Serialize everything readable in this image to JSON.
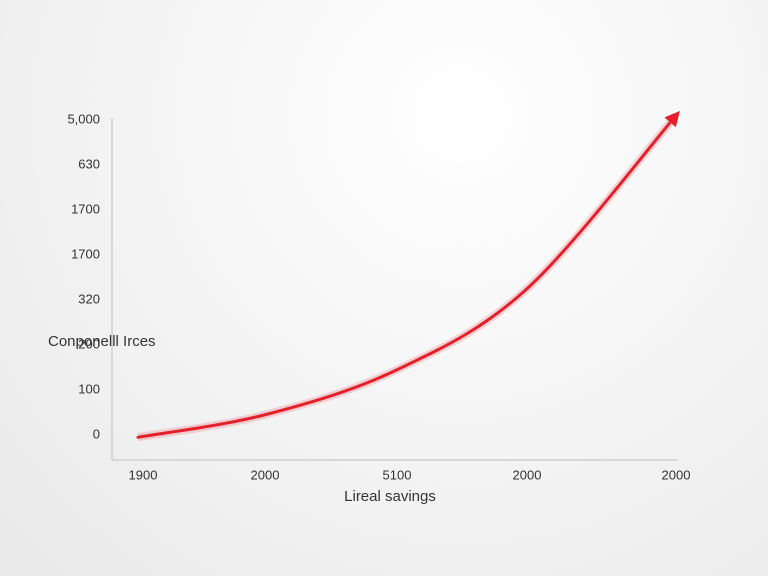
{
  "chart_data": {
    "type": "line",
    "y_label": "Conponelll Irces",
    "x_label": "Lireal savings",
    "categories": [
      "1900",
      "2000",
      "5100",
      "2000",
      "2000"
    ],
    "ycategories": [
      "0",
      "100",
      "200",
      "320",
      "1700",
      "1700",
      "630",
      "5,000"
    ],
    "series": [
      {
        "name": "",
        "color": "#e3202b",
        "values": [
          -0.05,
          0.45,
          1.45,
          3.25,
          7.1
        ]
      }
    ]
  }
}
